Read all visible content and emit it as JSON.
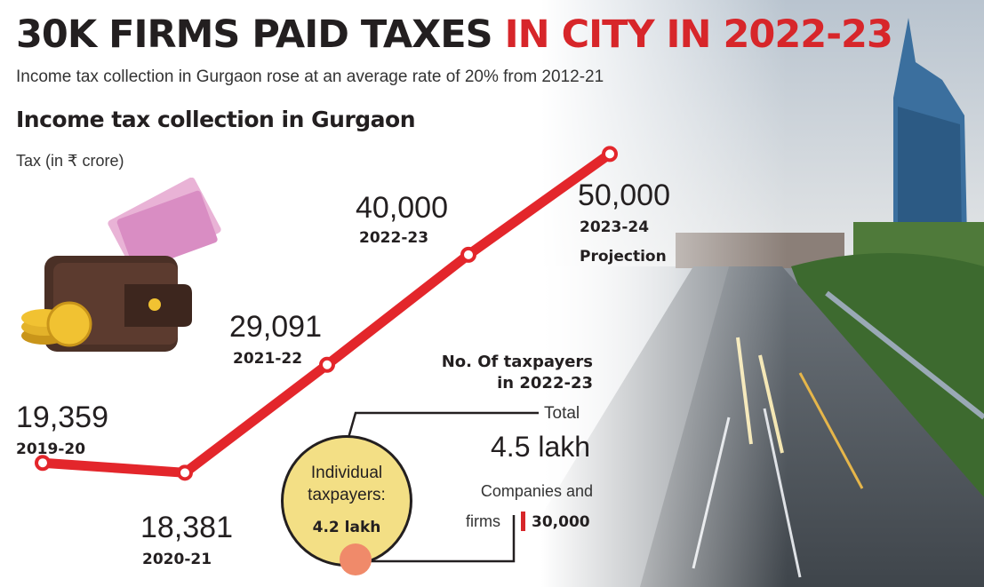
{
  "header": {
    "title_part1": "30K FIRMS PAID TAXES",
    "title_part2": "IN CITY IN 2022-23",
    "subtitle": "Income tax collection in Gurgaon rose at an average rate of 20% from 2012-21"
  },
  "colors": {
    "accent_red": "#d7262a",
    "line": "#e3262b",
    "bubble_fill": "#f3df85",
    "text_dark": "#231f20"
  },
  "chart_data": {
    "type": "line",
    "title": "Income tax collection in Gurgaon",
    "ylabel": "Tax  (in ₹ crore)",
    "x": [
      "2019-20",
      "2020-21",
      "2021-22",
      "2022-23",
      "2023-24"
    ],
    "values": [
      19359,
      18381,
      29091,
      40000,
      50000
    ],
    "value_labels": [
      "19,359",
      "18,381",
      "29,091",
      "40,000",
      "50,000"
    ],
    "annotations": [
      "Projection"
    ],
    "ylim": [
      17000,
      51000
    ],
    "grid": false
  },
  "taxpayers": {
    "heading_line1": "No. Of taxpayers",
    "heading_line2": "in 2022-23",
    "total_label": "Total",
    "total_value": "4.5 lakh",
    "individual_label_line1": "Individual",
    "individual_label_line2": "taxpayers:",
    "individual_value": "4.2 lakh",
    "companies_label_line1": "Companies and",
    "companies_label_line2": "firms",
    "companies_value": "30,000"
  },
  "icons": [
    "wallet-icon",
    "coins-icon",
    "banknotes-icon"
  ]
}
